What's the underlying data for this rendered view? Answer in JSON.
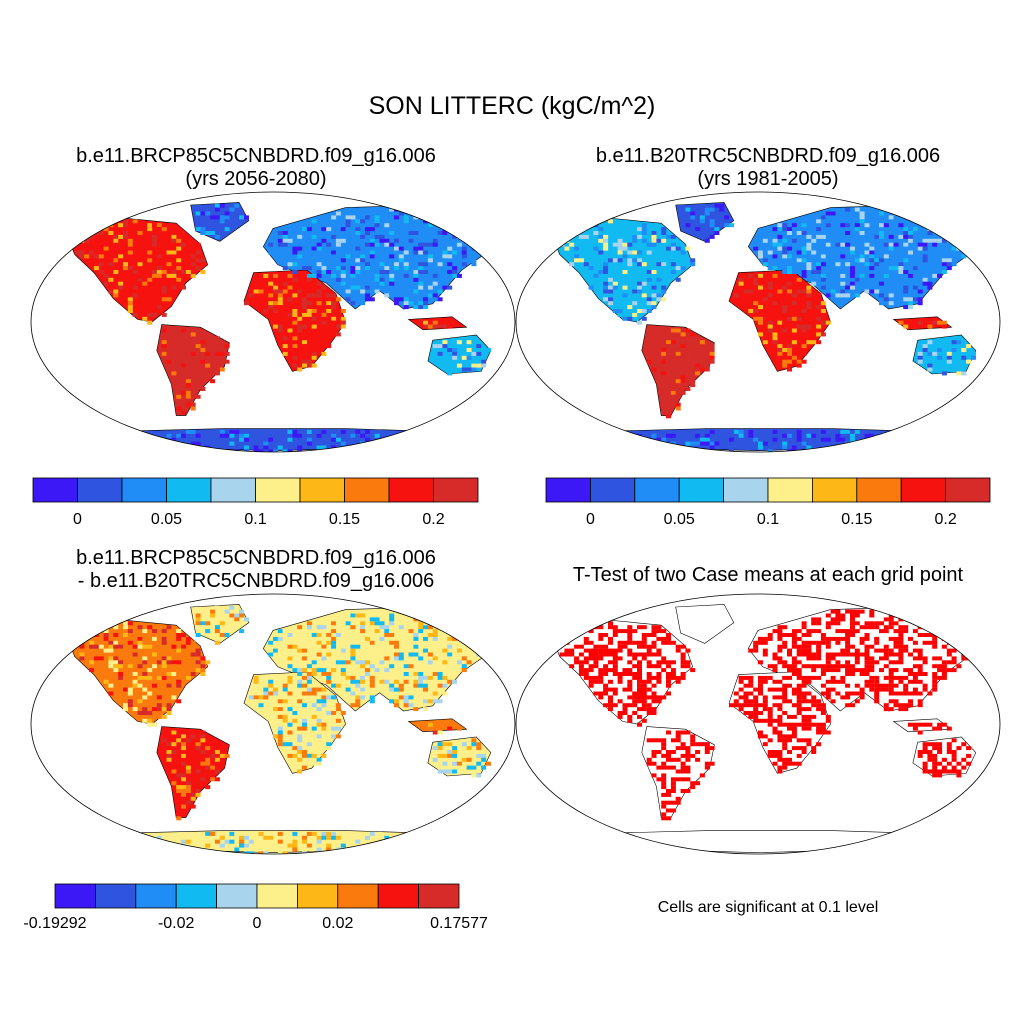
{
  "title": "SON LITTERC (kgC/m^2)",
  "panels": [
    {
      "title_line1": "b.e11.BRCP85C5CNBDRD.f09_g16.006",
      "title_line2": "(yrs 2056-2080)",
      "colorbar": {
        "colors": [
          "#3b18f5",
          "#2f55e0",
          "#1f8df5",
          "#12baf2",
          "#a8d4ee",
          "#fdf08a",
          "#fdb716",
          "#fa7a0e",
          "#f5120f",
          "#d62b28"
        ],
        "ticks": [
          {
            "label": "0",
            "boundary": 1
          },
          {
            "label": "0.05",
            "boundary": 3
          },
          {
            "label": "0.1",
            "boundary": 5
          },
          {
            "label": "0.15",
            "boundary": 7
          },
          {
            "label": "0.2",
            "boundary": 9
          }
        ]
      }
    },
    {
      "title_line1": "b.e11.B20TRC5CNBDRD.f09_g16.006",
      "title_line2": "(yrs 1981-2005)",
      "colorbar": {
        "colors": [
          "#3b18f5",
          "#2f55e0",
          "#1f8df5",
          "#12baf2",
          "#a8d4ee",
          "#fdf08a",
          "#fdb716",
          "#fa7a0e",
          "#f5120f",
          "#d62b28"
        ],
        "ticks": [
          {
            "label": "0",
            "boundary": 1
          },
          {
            "label": "0.05",
            "boundary": 3
          },
          {
            "label": "0.1",
            "boundary": 5
          },
          {
            "label": "0.15",
            "boundary": 7
          },
          {
            "label": "0.2",
            "boundary": 9
          }
        ]
      }
    },
    {
      "title_line1": "b.e11.BRCP85C5CNBDRD.f09_g16.006",
      "title_line2": "- b.e11.B20TRC5CNBDRD.f09_g16.006",
      "colorbar": {
        "colors": [
          "#3b18f5",
          "#2f55e0",
          "#1f8df5",
          "#12baf2",
          "#a8d4ee",
          "#fdf08a",
          "#fdb716",
          "#fa7a0e",
          "#f5120f",
          "#d62b28"
        ],
        "ticks": [
          {
            "label": "-0.19292",
            "boundary": 0
          },
          {
            "label": "-0.02",
            "boundary": 3
          },
          {
            "label": "0",
            "boundary": 5
          },
          {
            "label": "0.02",
            "boundary": 7
          },
          {
            "label": "0.17577",
            "boundary": 10
          }
        ]
      }
    },
    {
      "title_line1": "T-Test of two Case means at each grid point",
      "note": "Cells are significant at 0.1 level"
    }
  ],
  "map_colors": {
    "ocean": "#ffffff",
    "outline": "#000000",
    "significant": "#ff0000"
  }
}
